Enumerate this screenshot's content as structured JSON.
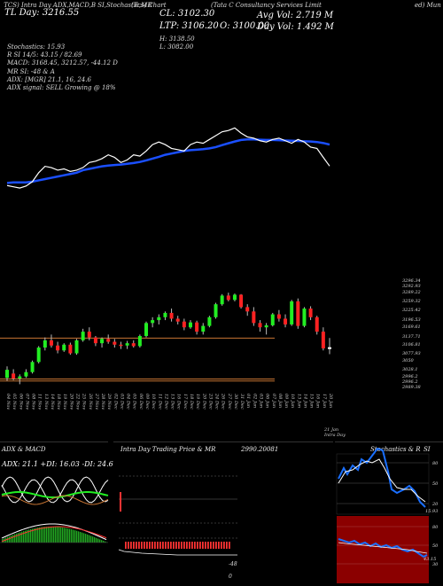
{
  "header": {
    "tag_line": " TCS) Intra Day ADX,MACD,B SI,Stochastic,MR",
    "day_line": " TL Day: 3216.55",
    "chart_title": "(Tcs) Chart",
    "company_name": "(Tata C Consultancy Services Limit",
    "suffix": "ed) Mun",
    "cl": "CL: 3102.30",
    "ltp": "LTP: 3106.20",
    "open": "O: 3100.00",
    "high": "H: 3138.50",
    "low": "L: 3082.00",
    "avg_vol": "Avg Vol: 2.719 M",
    "day_vol": "Day Vol: 1.492 M",
    "stoch": "Stochastics: 15.93",
    "rsi_line": "R SI 14/5: 43.15 / 82.69",
    "macd_line": "MACD: 3168.45, 3212.57, -44.12 D",
    "mrsi_line": "MR SI: -48 & A",
    "adx_line": "ADX: [MGR] 21.1, 16, 24.6",
    "adx_signal": "ADX signal: SELL Growing @ 18%"
  },
  "price_axis": [
    "3296.34",
    "3292.93",
    "3289.22",
    "3259.32",
    "3225.42",
    "3196.53",
    "3169.61",
    "3137.71",
    "3106.81",
    "3077.93",
    "3050",
    "3028.1",
    "2996.2",
    "2996.2",
    "2989.38"
  ],
  "date_labels": [
    "04 Nov",
    "05 Nov",
    "06 Nov",
    "07 Nov",
    "08 Nov",
    "11 Nov",
    "13 Nov",
    "14 Nov",
    "18 Nov",
    "19 Nov",
    "20 Nov",
    "22 Nov",
    "25 Nov",
    "26 Nov",
    "27 Nov",
    "28 Nov",
    "29 Nov",
    "02 Dec",
    "03 Dec",
    "04 Dec",
    "05 Dec",
    "06 Dec",
    "09 Dec",
    "10 Dec",
    "11 Dec",
    "12 Dec",
    "13 Dec",
    "16 Dec",
    "17 Dec",
    "18 Dec",
    "19 Dec",
    "20 Dec",
    "23 Dec",
    "24 Dec",
    "26 Dec",
    "27 Dec",
    "30 Dec",
    "31 Dec",
    "01 Jan",
    "02 Jan",
    "03 Jan",
    "06 Jan",
    "07 Jan",
    "08 Jan",
    "09 Jan",
    "10 Jan",
    "13 Jan",
    "14 Jan",
    "15 Jan",
    "16 Jan",
    "17 Jan",
    "20 Jan"
  ],
  "date_footer": "21 Jan Intra Day",
  "panels": {
    "adx": {
      "title": "ADX & MACD",
      "values": "ADX: 21.1 +DI: 16.03 -DI: 24.6"
    },
    "intraday": {
      "title": "Intra Day Trading Price & MR",
      "value": "2990.20081",
      "minus_label": "-48",
      "zero_label": "0"
    },
    "stoch": {
      "title": "Stochastics & R",
      "si": "SI",
      "labels": [
        "80",
        "50",
        "20"
      ],
      "value_label": "15.93",
      "rsi_labels": [
        "80",
        "50",
        "30"
      ],
      "rsi_value": "43.15"
    }
  },
  "colors": {
    "bull": "#22ee22",
    "bear": "#ff2222",
    "ema": "#1a4fff",
    "price": "#ffffff",
    "orange": "#c87533",
    "rsi_bg": "#8b0000"
  },
  "chart_data": {
    "type": "candlestick",
    "title": "(Tcs) Chart",
    "ylim": [
      2970,
      3320
    ],
    "candles": [
      {
        "date": "04 Nov",
        "o": 3000,
        "h": 3040,
        "l": 2990,
        "c": 3028
      },
      {
        "date": "05 Nov",
        "o": 3015,
        "h": 3030,
        "l": 2992,
        "c": 2998
      },
      {
        "date": "06 Nov",
        "o": 2998,
        "h": 3012,
        "l": 2978,
        "c": 3005
      },
      {
        "date": "07 Nov",
        "o": 3005,
        "h": 3030,
        "l": 3000,
        "c": 3020
      },
      {
        "date": "08 Nov",
        "o": 3020,
        "h": 3060,
        "l": 3015,
        "c": 3055
      },
      {
        "date": "11 Nov",
        "o": 3055,
        "h": 3110,
        "l": 3050,
        "c": 3105
      },
      {
        "date": "13 Nov",
        "o": 3105,
        "h": 3140,
        "l": 3095,
        "c": 3130
      },
      {
        "date": "14 Nov",
        "o": 3130,
        "h": 3150,
        "l": 3105,
        "c": 3112
      },
      {
        "date": "18 Nov",
        "o": 3112,
        "h": 3125,
        "l": 3085,
        "c": 3095
      },
      {
        "date": "19 Nov",
        "o": 3095,
        "h": 3120,
        "l": 3090,
        "c": 3115
      },
      {
        "date": "20 Nov",
        "o": 3115,
        "h": 3122,
        "l": 3080,
        "c": 3085
      },
      {
        "date": "22 Nov",
        "o": 3085,
        "h": 3135,
        "l": 3080,
        "c": 3130
      },
      {
        "date": "25 Nov",
        "o": 3130,
        "h": 3170,
        "l": 3125,
        "c": 3160
      },
      {
        "date": "26 Nov",
        "o": 3160,
        "h": 3175,
        "l": 3130,
        "c": 3140
      },
      {
        "date": "27 Nov",
        "o": 3140,
        "h": 3145,
        "l": 3110,
        "c": 3120
      },
      {
        "date": "28 Nov",
        "o": 3120,
        "h": 3140,
        "l": 3105,
        "c": 3135
      },
      {
        "date": "29 Nov",
        "o": 3135,
        "h": 3150,
        "l": 3118,
        "c": 3125
      },
      {
        "date": "02 Dec",
        "o": 3125,
        "h": 3135,
        "l": 3105,
        "c": 3115
      },
      {
        "date": "03 Dec",
        "o": 3115,
        "h": 3125,
        "l": 3100,
        "c": 3112
      },
      {
        "date": "04 Dec",
        "o": 3112,
        "h": 3128,
        "l": 3100,
        "c": 3120
      },
      {
        "date": "05 Dec",
        "o": 3120,
        "h": 3130,
        "l": 3105,
        "c": 3110
      },
      {
        "date": "06 Dec",
        "o": 3110,
        "h": 3150,
        "l": 3105,
        "c": 3145
      },
      {
        "date": "09 Dec",
        "o": 3145,
        "h": 3195,
        "l": 3140,
        "c": 3190
      },
      {
        "date": "10 Dec",
        "o": 3190,
        "h": 3210,
        "l": 3175,
        "c": 3200
      },
      {
        "date": "11 Dec",
        "o": 3200,
        "h": 3220,
        "l": 3185,
        "c": 3210
      },
      {
        "date": "12 Dec",
        "o": 3210,
        "h": 3230,
        "l": 3200,
        "c": 3225
      },
      {
        "date": "13 Dec",
        "o": 3225,
        "h": 3240,
        "l": 3195,
        "c": 3205
      },
      {
        "date": "16 Dec",
        "o": 3205,
        "h": 3215,
        "l": 3185,
        "c": 3195
      },
      {
        "date": "17 Dec",
        "o": 3195,
        "h": 3205,
        "l": 3165,
        "c": 3175
      },
      {
        "date": "18 Dec",
        "o": 3175,
        "h": 3200,
        "l": 3170,
        "c": 3192
      },
      {
        "date": "19 Dec",
        "o": 3192,
        "h": 3198,
        "l": 3150,
        "c": 3160
      },
      {
        "date": "20 Dec",
        "o": 3160,
        "h": 3190,
        "l": 3150,
        "c": 3180
      },
      {
        "date": "23 Dec",
        "o": 3180,
        "h": 3215,
        "l": 3175,
        "c": 3210
      },
      {
        "date": "24 Dec",
        "o": 3210,
        "h": 3260,
        "l": 3205,
        "c": 3255
      },
      {
        "date": "26 Dec",
        "o": 3255,
        "h": 3290,
        "l": 3250,
        "c": 3285
      },
      {
        "date": "27 Dec",
        "o": 3285,
        "h": 3295,
        "l": 3265,
        "c": 3270
      },
      {
        "date": "30 Dec",
        "o": 3270,
        "h": 3292,
        "l": 3265,
        "c": 3288
      },
      {
        "date": "31 Dec",
        "o": 3288,
        "h": 3290,
        "l": 3240,
        "c": 3245
      },
      {
        "date": "01 Jan",
        "o": 3245,
        "h": 3255,
        "l": 3215,
        "c": 3230
      },
      {
        "date": "02 Jan",
        "o": 3230,
        "h": 3245,
        "l": 3180,
        "c": 3190
      },
      {
        "date": "03 Jan",
        "o": 3190,
        "h": 3200,
        "l": 3160,
        "c": 3175
      },
      {
        "date": "06 Jan",
        "o": 3175,
        "h": 3190,
        "l": 3150,
        "c": 3182
      },
      {
        "date": "07 Jan",
        "o": 3182,
        "h": 3225,
        "l": 3178,
        "c": 3220
      },
      {
        "date": "08 Jan",
        "o": 3220,
        "h": 3235,
        "l": 3195,
        "c": 3205
      },
      {
        "date": "09 Jan",
        "o": 3205,
        "h": 3220,
        "l": 3175,
        "c": 3185
      },
      {
        "date": "10 Jan",
        "o": 3185,
        "h": 3270,
        "l": 3180,
        "c": 3265
      },
      {
        "date": "13 Jan",
        "o": 3265,
        "h": 3275,
        "l": 3170,
        "c": 3180
      },
      {
        "date": "14 Jan",
        "o": 3180,
        "h": 3245,
        "l": 3175,
        "c": 3240
      },
      {
        "date": "15 Jan",
        "o": 3240,
        "h": 3248,
        "l": 3200,
        "c": 3210
      },
      {
        "date": "16 Jan",
        "o": 3210,
        "h": 3215,
        "l": 3150,
        "c": 3160
      },
      {
        "date": "17 Jan",
        "o": 3160,
        "h": 3175,
        "l": 3095,
        "c": 3102
      },
      {
        "date": "20 Jan",
        "o": 3100,
        "h": 3138,
        "l": 3082,
        "c": 3106
      }
    ],
    "ema": [
      3040,
      3042,
      3042,
      3042,
      3045,
      3050,
      3055,
      3060,
      3065,
      3070,
      3075,
      3080,
      3090,
      3095,
      3100,
      3105,
      3108,
      3110,
      3112,
      3115,
      3118,
      3122,
      3128,
      3135,
      3142,
      3150,
      3155,
      3160,
      3165,
      3168,
      3170,
      3172,
      3175,
      3180,
      3188,
      3195,
      3202,
      3208,
      3210,
      3210,
      3209,
      3208,
      3208,
      3207,
      3206,
      3205,
      3204,
      3203,
      3202,
      3200,
      3196,
      3190
    ],
    "close_line": [
      3030,
      3025,
      3020,
      3028,
      3045,
      3080,
      3105,
      3100,
      3090,
      3095,
      3085,
      3090,
      3100,
      3120,
      3125,
      3135,
      3150,
      3140,
      3120,
      3130,
      3150,
      3145,
      3165,
      3190,
      3200,
      3190,
      3175,
      3170,
      3165,
      3190,
      3200,
      3195,
      3210,
      3225,
      3240,
      3245,
      3255,
      3235,
      3220,
      3215,
      3205,
      3200,
      3210,
      3215,
      3205,
      3195,
      3210,
      3200,
      3180,
      3175,
      3140,
      3106
    ],
    "upper_ref": 3137.71,
    "lower_refs": [
      2996.2,
      2989.38
    ]
  }
}
